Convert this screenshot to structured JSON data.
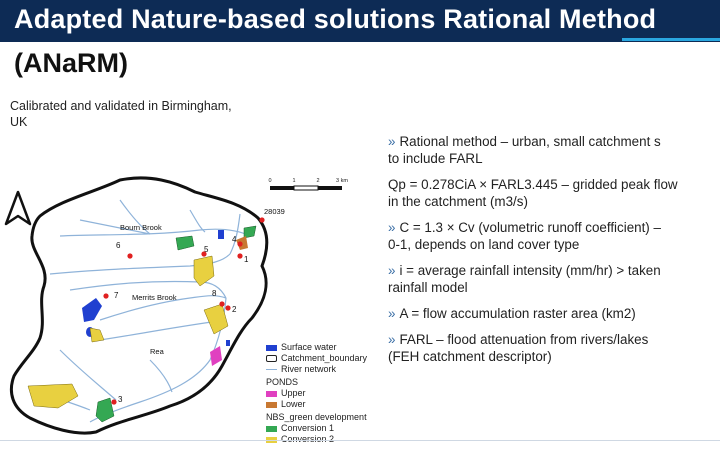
{
  "slide": {
    "title": "Adapted Nature-based solutions Rational Method",
    "subtitle": "(ANaRM)",
    "caption_line1": "Calibrated and validated in Birmingham,",
    "caption_line2": "UK"
  },
  "bullets": [
    {
      "line1": "Rational method – urban, small catchment s",
      "line2": "to include FARL"
    },
    {
      "line1": "Qp = 0.278CiA × FARL3.445 – gridded peak flow",
      "line2": "in the catchment (m3/s)"
    },
    {
      "line1": "C = 1.3 × Cv (volumetric runoff coefficient) –",
      "line2": "0-1, depends on land cover type"
    },
    {
      "line1": "i = average rainfall intensity (mm/hr) > taken",
      "line2": "rainfall model"
    },
    {
      "line1": "A = flow accumulation raster area (km2)"
    },
    {
      "line1": "FARL – flood attenuation from rivers/lakes",
      "line2": "(FEH catchment descriptor)"
    }
  ],
  "map": {
    "labels": {
      "bourn_brook": "Bourn Brook",
      "merrits_brook": "Merrits Brook",
      "rea": "Rea",
      "gauge_28039": "28039"
    },
    "points": [
      "1",
      "2",
      "3",
      "4",
      "5",
      "6",
      "7",
      "8"
    ],
    "scale": {
      "t0": "0",
      "t1": "1",
      "t2": "2",
      "t3": "3 km"
    },
    "legend": {
      "surface_water": "Surface water",
      "boundary": "Catchment_boundary",
      "river": "River network",
      "ponds_title": "PONDS",
      "upper": "Upper",
      "lower": "Lower",
      "nbs_title": "NBS_green development",
      "conv1": "Conversion 1",
      "conv2": "Conversion 2"
    },
    "colors": {
      "surface_water": "#2040d0",
      "upper": "#e040c0",
      "lower": "#c87832",
      "conv1": "#34a853",
      "conv2": "#e8d040",
      "river": "#8fb3d9",
      "points": "#e02020"
    }
  }
}
